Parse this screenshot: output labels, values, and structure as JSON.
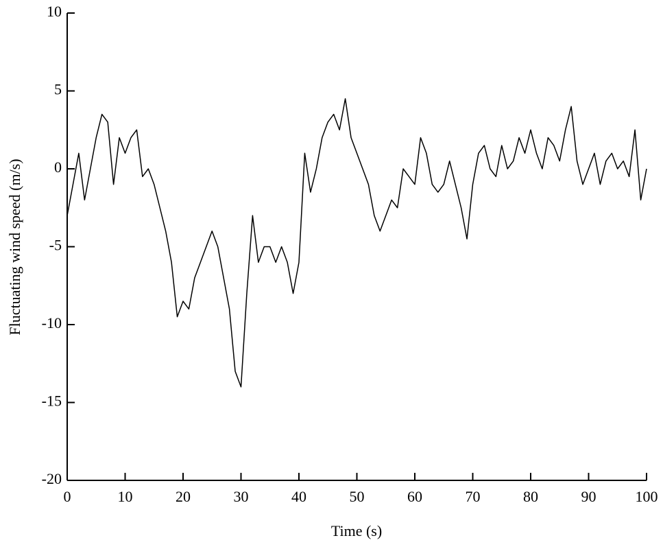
{
  "chart_data": {
    "type": "line",
    "xlabel": "Time (s)",
    "ylabel": "Fluctuating wind speed (m/s)",
    "x": [
      0,
      1,
      2,
      3,
      4,
      5,
      6,
      7,
      8,
      9,
      10,
      11,
      12,
      13,
      14,
      15,
      16,
      17,
      18,
      19,
      20,
      21,
      22,
      23,
      24,
      25,
      26,
      27,
      28,
      29,
      30,
      31,
      32,
      33,
      34,
      35,
      36,
      37,
      38,
      39,
      40,
      41,
      42,
      43,
      44,
      45,
      46,
      47,
      48,
      49,
      50,
      51,
      52,
      53,
      54,
      55,
      56,
      57,
      58,
      59,
      60,
      61,
      62,
      63,
      64,
      65,
      66,
      67,
      68,
      69,
      70,
      71,
      72,
      73,
      74,
      75,
      76,
      77,
      78,
      79,
      80,
      81,
      82,
      83,
      84,
      85,
      86,
      87,
      88,
      89,
      90,
      91,
      92,
      93,
      94,
      95,
      96,
      97,
      98,
      99,
      100
    ],
    "series": [
      {
        "name": "Fluctuating wind speed",
        "color": "#000000",
        "values": [
          -3,
          -1,
          1,
          -2,
          0,
          2,
          3.5,
          3,
          -1,
          2,
          1,
          2,
          2.5,
          -0.5,
          0,
          -1,
          -2.5,
          -4,
          -6,
          -9.5,
          -8.5,
          -9,
          -7,
          -6,
          -5,
          -4,
          -5,
          -7,
          -9,
          -13,
          -14,
          -8,
          -3,
          -6,
          -5,
          -5,
          -6,
          -5,
          -6,
          -8,
          -6,
          1,
          -1.5,
          0,
          2,
          3,
          3.5,
          2.5,
          4.5,
          2,
          1,
          0,
          -1,
          -3,
          -4,
          -3,
          -2,
          -2.5,
          0,
          -0.5,
          -1,
          2,
          1,
          -1,
          -1.5,
          -1,
          0.5,
          -1,
          -2.5,
          -4.5,
          -1,
          1,
          1.5,
          0,
          -0.5,
          1.5,
          0,
          0.5,
          2,
          1,
          2.5,
          1,
          0,
          2,
          1.5,
          0.5,
          2.5,
          4,
          0.5,
          -1,
          0,
          1,
          -1,
          0.5,
          1,
          0,
          0.5,
          -0.5,
          2.5,
          -2,
          0
        ]
      }
    ],
    "xlim": [
      0,
      100
    ],
    "xticks": [
      0,
      10,
      20,
      30,
      40,
      50,
      60,
      70,
      80,
      90,
      100
    ],
    "ylim": [
      -20,
      10
    ],
    "yticks": [
      -20,
      -15,
      -10,
      -5,
      0,
      5,
      10
    ]
  }
}
